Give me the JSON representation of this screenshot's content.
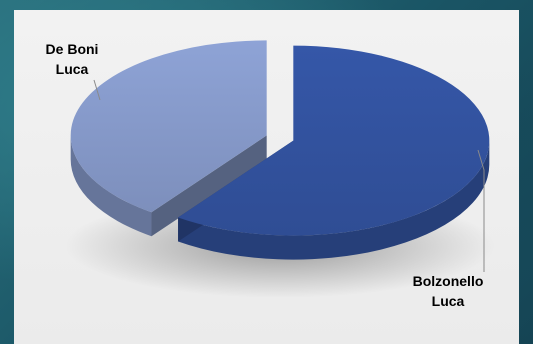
{
  "chart_data": {
    "type": "pie",
    "style": "3d-exploded",
    "title": "",
    "slices": [
      {
        "label": "Bolzonello Luca",
        "value": 60,
        "color": "#3557a8"
      },
      {
        "label": "De Boni Luca",
        "value": 40,
        "color": "#8ea3d6"
      }
    ],
    "legend": "none",
    "data_labels": "outside-with-leader-lines"
  }
}
